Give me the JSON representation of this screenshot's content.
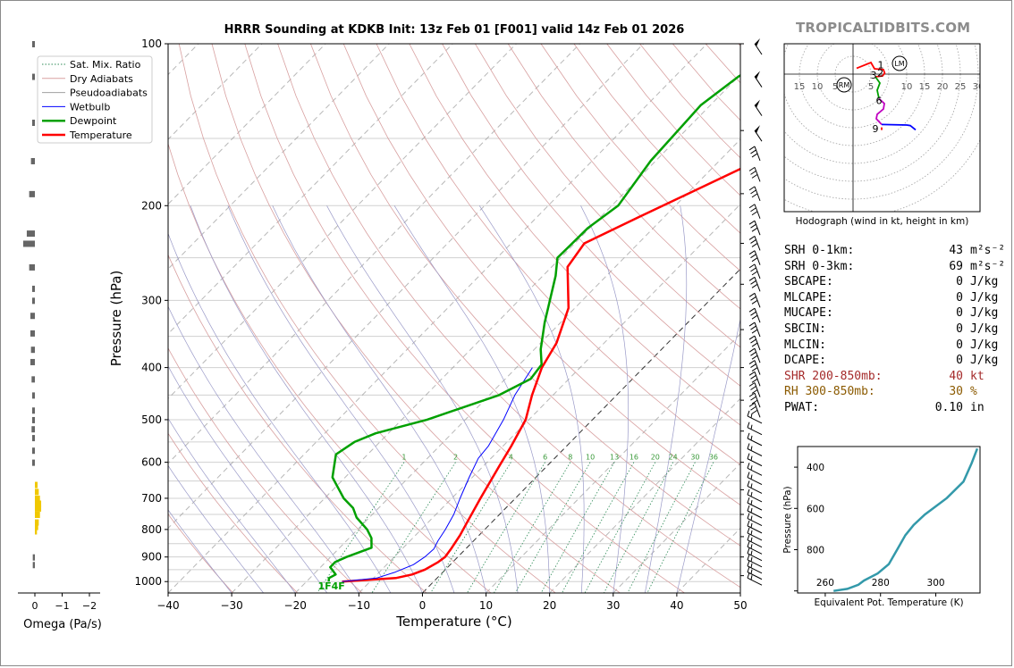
{
  "title": "HRRR Sounding at KDKB Init: 13z Feb 01 [F001] valid 14z Feb 01 2026",
  "brand": "TROPICALTIDBITS.COM",
  "chart_data": [
    {
      "type": "line",
      "name": "skew-t",
      "xlabel": "Temperature (°C)",
      "ylabel": "Pressure (hPa)",
      "xlim": [
        -40,
        50
      ],
      "ylim": [
        1050,
        100
      ],
      "log_y": true,
      "x_ticks": [
        -40,
        -30,
        -20,
        -10,
        0,
        10,
        20,
        30,
        40,
        50
      ],
      "y_ticks": [
        100,
        200,
        300,
        400,
        500,
        600,
        700,
        800,
        900,
        1000
      ],
      "grid": true,
      "legend": {
        "position": "top-left",
        "entries": [
          {
            "name": "Sat. Mix. Ratio",
            "color": "#2e8b57",
            "style": "dotted"
          },
          {
            "name": "Dry Adiabats",
            "color": "#d9a0a0",
            "style": "solid"
          },
          {
            "name": "Pseudoadiabats",
            "color": "#a0a0a0",
            "style": "solid"
          },
          {
            "name": "Wetbulb",
            "color": "#0000ff",
            "style": "solid"
          },
          {
            "name": "Dewpoint",
            "color": "#00a000",
            "style": "solid"
          },
          {
            "name": "Temperature",
            "color": "#ff0000",
            "style": "solid"
          }
        ]
      },
      "mixing_ratio_labels": [
        "1",
        "2",
        "4",
        "6",
        "8",
        "10",
        "13",
        "16",
        "20",
        "24",
        "30",
        "36"
      ],
      "surface_label": "1F4F",
      "series": [
        {
          "name": "Temperature",
          "color": "#ff0000",
          "points": [
            [
              -14.4,
              1000
            ],
            [
              -6.5,
              985
            ],
            [
              -4.5,
              970
            ],
            [
              -3.2,
              950
            ],
            [
              -2.3,
              920
            ],
            [
              -2.0,
              900
            ],
            [
              -2.3,
              870
            ],
            [
              -3.0,
              820
            ],
            [
              -3.8,
              780
            ],
            [
              -5.5,
              700
            ],
            [
              -7.5,
              610
            ],
            [
              -8.7,
              560
            ],
            [
              -10.5,
              500
            ],
            [
              -13.3,
              450
            ],
            [
              -16.0,
              400
            ],
            [
              -17.5,
              360
            ],
            [
              -21,
              310
            ],
            [
              -27.5,
              260
            ],
            [
              -28.5,
              235
            ],
            [
              -24,
              210
            ],
            [
              -14,
              165
            ],
            [
              -6,
              140
            ],
            [
              -3,
              120
            ],
            [
              3.5,
              100
            ]
          ]
        },
        {
          "name": "Wetbulb",
          "color": "#0000ff",
          "points": [
            [
              -14.4,
              1000
            ],
            [
              -9.5,
              985
            ],
            [
              -7.5,
              960
            ],
            [
              -5.8,
              930
            ],
            [
              -5.2,
              900
            ],
            [
              -5.0,
              870
            ],
            [
              -5.6,
              840
            ],
            [
              -6.2,
              800
            ],
            [
              -7.2,
              750
            ],
            [
              -8.7,
              700
            ],
            [
              -10.5,
              640
            ],
            [
              -12.0,
              590
            ],
            [
              -12.3,
              560
            ],
            [
              -14,
              500
            ],
            [
              -16,
              450
            ],
            [
              -17.5,
              400
            ]
          ]
        },
        {
          "name": "Dewpoint",
          "color": "#00a000",
          "points": [
            [
              -16.5,
              1000
            ],
            [
              -17.0,
              985
            ],
            [
              -16.5,
              970
            ],
            [
              -18.5,
              940
            ],
            [
              -18.5,
              920
            ],
            [
              -17.5,
              900
            ],
            [
              -15.0,
              865
            ],
            [
              -16.5,
              830
            ],
            [
              -18.5,
              800
            ],
            [
              -22,
              760
            ],
            [
              -24,
              730
            ],
            [
              -27,
              700
            ],
            [
              -32,
              640
            ],
            [
              -35,
              580
            ],
            [
              -34,
              550
            ],
            [
              -32,
              530
            ],
            [
              -26,
              500
            ],
            [
              -18.5,
              450
            ],
            [
              -16,
              420
            ],
            [
              -16.5,
              395
            ],
            [
              -19,
              370
            ],
            [
              -22.5,
              330
            ],
            [
              -28,
              270
            ],
            [
              -30.5,
              250
            ],
            [
              -30.3,
              220
            ],
            [
              -29,
              200
            ],
            [
              -30.8,
              165
            ],
            [
              -31.5,
              130
            ],
            [
              -30,
              115
            ],
            [
              -26,
              100
            ]
          ]
        }
      ],
      "wind_barbs_present": true,
      "omega_axis": {
        "label": "Omega (Pa/s)",
        "ticks": [
          "0",
          "−1",
          "−2"
        ],
        "values": [
          [
            -0.03,
            100
          ],
          [
            -0.03,
            115
          ],
          [
            -0.03,
            140
          ],
          [
            -0.05,
            165
          ],
          [
            -0.08,
            190
          ],
          [
            -0.12,
            225
          ],
          [
            -0.18,
            235
          ],
          [
            -0.08,
            260
          ],
          [
            -0.03,
            285
          ],
          [
            -0.03,
            300
          ],
          [
            -0.06,
            320
          ],
          [
            -0.06,
            345
          ],
          [
            -0.05,
            370
          ],
          [
            -0.06,
            390
          ],
          [
            -0.04,
            420
          ],
          [
            -0.03,
            450
          ],
          [
            -0.03,
            480
          ],
          [
            -0.03,
            500
          ],
          [
            -0.04,
            520
          ],
          [
            -0.03,
            540
          ],
          [
            -0.03,
            570
          ],
          [
            -0.03,
            600
          ],
          [
            0.03,
            660
          ],
          [
            0.05,
            680
          ],
          [
            0.07,
            700
          ],
          [
            0.09,
            715
          ],
          [
            0.09,
            730
          ],
          [
            0.07,
            750
          ],
          [
            0.05,
            775
          ],
          [
            0.04,
            790
          ],
          [
            0.02,
            805
          ],
          [
            -0.02,
            900
          ],
          [
            -0.02,
            930
          ]
        ]
      }
    },
    {
      "type": "line",
      "name": "hodograph",
      "xlabel": "Hodograph (wind in kt, height in km)",
      "xlim": [
        -40,
        35
      ],
      "ylim": [
        -30,
        20
      ],
      "ring_labels": [
        "15",
        "10",
        "5",
        "5",
        "10",
        "15",
        "20",
        "25",
        "30"
      ],
      "markers": [
        {
          "label": "LM",
          "u": 26,
          "v": 6
        },
        {
          "label": "RM",
          "u": -5,
          "v": -6
        }
      ],
      "height_labels": [
        {
          "label": "1",
          "u": 15.5,
          "v": 5.3
        },
        {
          "label": "2",
          "u": 15.3,
          "v": 0.7
        },
        {
          "label": "3",
          "u": 11.5,
          "v": -0.5
        },
        {
          "label": "6",
          "u": 14.5,
          "v": -14.8
        },
        {
          "label": "9",
          "u": 12.5,
          "v": -30.5
        }
      ],
      "segments": [
        {
          "color": "#ff0000",
          "points": [
            [
              2,
              3.3
            ],
            [
              10,
              6.5
            ],
            [
              12,
              3
            ],
            [
              17,
              2.5
            ],
            [
              17.7,
              0.5
            ],
            [
              16.5,
              -1.0
            ],
            [
              12.5,
              -1.5
            ]
          ]
        },
        {
          "color": "#00a000",
          "points": [
            [
              12.5,
              -1.5
            ],
            [
              15,
              -5
            ],
            [
              13.5,
              -9
            ],
            [
              14.5,
              -13.7
            ]
          ]
        },
        {
          "color": "#c000c0",
          "points": [
            [
              14.5,
              -13.7
            ],
            [
              17.5,
              -16.5
            ],
            [
              17,
              -19.5
            ],
            [
              13.5,
              -22.5
            ],
            [
              13,
              -25
            ],
            [
              16,
              -28.2
            ]
          ]
        },
        {
          "color": "#0000ff",
          "points": [
            [
              16,
              -28.2
            ],
            [
              30,
              -28.5
            ],
            [
              32,
              -28.8
            ],
            [
              35,
              -31.2
            ]
          ]
        },
        {
          "color": "#ff0000",
          "points": [
            [
              16,
              -29.8
            ],
            [
              16,
              -31.3
            ]
          ]
        }
      ]
    },
    {
      "type": "line",
      "name": "theta-e",
      "xlabel": "Equivalent Pot. Temperature (K)",
      "ylabel": "Pressure (hPa)",
      "x_ticks": [
        260,
        280,
        300
      ],
      "y_ticks": [
        400,
        600,
        800
      ],
      "xlim": [
        250,
        316
      ],
      "ylim": [
        1010,
        300
      ],
      "series": [
        {
          "name": "theta-e",
          "color": "#3399aa",
          "points": [
            [
              263,
              1000
            ],
            [
              268,
              990
            ],
            [
              272,
              970
            ],
            [
              274,
              950
            ],
            [
              279,
              915
            ],
            [
              283,
              870
            ],
            [
              286,
              800
            ],
            [
              289,
              730
            ],
            [
              292,
              680
            ],
            [
              296,
              630
            ],
            [
              304,
              550
            ],
            [
              310,
              470
            ],
            [
              313,
              380
            ],
            [
              315,
              310
            ]
          ]
        }
      ]
    }
  ],
  "stats": [
    {
      "label": "SRH 0-1km:",
      "value": "43",
      "unit": "m²s⁻²",
      "color": "#000000"
    },
    {
      "label": "SRH 0-3km:",
      "value": "69",
      "unit": "m²s⁻²",
      "color": "#000000"
    },
    {
      "label": "SBCAPE:",
      "value": "0",
      "unit": "J/kg",
      "color": "#000000"
    },
    {
      "label": "MLCAPE:",
      "value": "0",
      "unit": "J/kg",
      "color": "#000000"
    },
    {
      "label": "MUCAPE:",
      "value": "0",
      "unit": "J/kg",
      "color": "#000000"
    },
    {
      "label": "SBCIN:",
      "value": "0",
      "unit": "J/kg",
      "color": "#000000"
    },
    {
      "label": "MLCIN:",
      "value": "0",
      "unit": "J/kg",
      "color": "#000000"
    },
    {
      "label": "DCAPE:",
      "value": "0",
      "unit": "J/kg",
      "color": "#000000"
    },
    {
      "label": "SHR 200-850mb:",
      "value": "40",
      "unit": "kt",
      "color": "#a52a2a"
    },
    {
      "label": "RH 300-850mb:",
      "value": "30",
      "unit": "%",
      "color": "#8b5a00"
    },
    {
      "label": "PWAT:",
      "value": "0.10",
      "unit": "in",
      "color": "#000000"
    }
  ]
}
